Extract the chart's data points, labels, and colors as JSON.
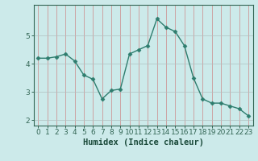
{
  "x": [
    0,
    1,
    2,
    3,
    4,
    5,
    6,
    7,
    8,
    9,
    10,
    11,
    12,
    13,
    14,
    15,
    16,
    17,
    18,
    19,
    20,
    21,
    22,
    23
  ],
  "y": [
    4.2,
    4.2,
    4.25,
    4.35,
    4.1,
    3.6,
    3.45,
    2.75,
    3.05,
    3.1,
    4.35,
    4.5,
    4.65,
    5.6,
    5.3,
    5.15,
    4.65,
    3.5,
    2.75,
    2.6,
    2.6,
    2.5,
    2.4,
    2.15
  ],
  "line_color": "#2e7d6e",
  "marker": "D",
  "marker_size": 2.5,
  "bg_color": "#cceaea",
  "grid_color": "#b0b0b0",
  "grid_color_v": "#d08080",
  "xlabel": "Humidex (Indice chaleur)",
  "ylim": [
    1.8,
    6.1
  ],
  "xlim": [
    -0.5,
    23.5
  ],
  "yticks": [
    2,
    3,
    4,
    5
  ],
  "xticks": [
    0,
    1,
    2,
    3,
    4,
    5,
    6,
    7,
    8,
    9,
    10,
    11,
    12,
    13,
    14,
    15,
    16,
    17,
    18,
    19,
    20,
    21,
    22,
    23
  ],
  "xlabel_fontsize": 7.5,
  "tick_fontsize": 6.5,
  "spine_color": "#336655",
  "line_width": 1.0
}
